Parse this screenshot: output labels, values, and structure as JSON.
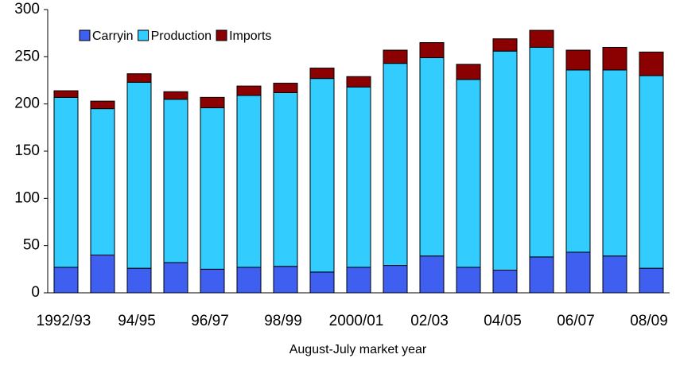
{
  "chart_data": {
    "type": "stacked_bar",
    "x_label": "August-July market year",
    "categories": [
      "1992/93",
      null,
      "94/95",
      null,
      "96/97",
      null,
      "98/99",
      null,
      "2000/01",
      null,
      "02/03",
      null,
      "04/05",
      null,
      "06/07",
      null,
      "08/09"
    ],
    "series": [
      {
        "name": "Carryin",
        "color": "#3f5ff0",
        "values": [
          27,
          40,
          26,
          32,
          25,
          27,
          28,
          22,
          27,
          29,
          39,
          27,
          24,
          38,
          43,
          39,
          26
        ]
      },
      {
        "name": "Production",
        "color": "#33ccff",
        "values": [
          180,
          155,
          197,
          173,
          171,
          182,
          184,
          205,
          191,
          214,
          210,
          199,
          232,
          222,
          193,
          197,
          204
        ]
      },
      {
        "name": "Imports",
        "color": "#8b0000",
        "values": [
          7,
          8,
          9,
          8,
          11,
          10,
          10,
          11,
          11,
          14,
          16,
          16,
          13,
          18,
          21,
          24,
          25
        ]
      }
    ],
    "ylim": [
      0,
      300
    ],
    "yticks": [
      0,
      50,
      100,
      150,
      200,
      250,
      300
    ],
    "grid": false,
    "legend": "top-left"
  }
}
